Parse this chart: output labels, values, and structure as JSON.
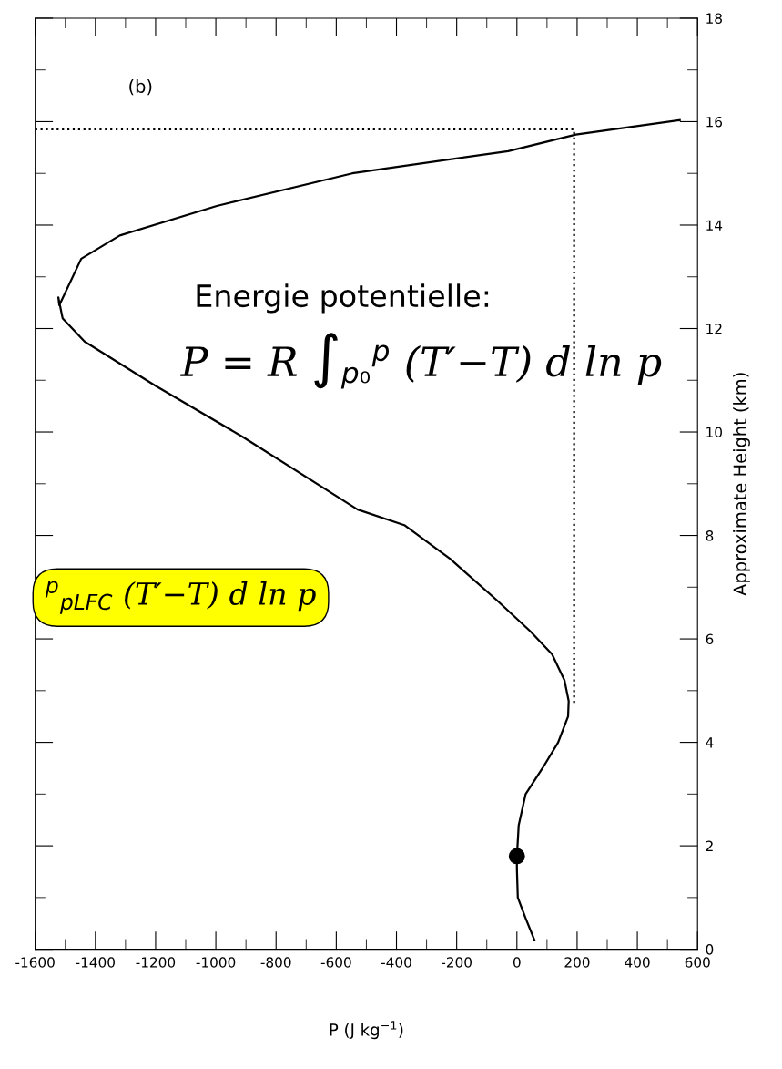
{
  "chart_data": {
    "type": "line",
    "xlabel": "P (J kg$^{−1}$)",
    "ylabel": "Approximate Height (km)",
    "xlim": [
      -1600,
      600
    ],
    "xticks": [
      -1600,
      -1400,
      -1200,
      -1000,
      -800,
      -600,
      -400,
      -200,
      0,
      200,
      400,
      600
    ],
    "ylim": [
      0,
      18
    ],
    "yticks": [
      0,
      2,
      4,
      6,
      8,
      10,
      12,
      14,
      16,
      18
    ],
    "grid": false,
    "legend": false,
    "series": [
      {
        "color": "#000000",
        "line_style": "solid",
        "marker": "none",
        "x": [
          58,
          29,
          3,
          0,
          0,
          6,
          29,
          85,
          137,
          170,
          172,
          158,
          117,
          44,
          -67,
          -222,
          -374,
          -529,
          -909,
          -1202,
          -1436,
          -1509,
          -1523,
          -1520,
          -1447,
          -1319,
          -997,
          -547,
          -29,
          196,
          541
        ],
        "values": [
          0.18,
          0.6,
          1.0,
          1.55,
          1.8,
          2.4,
          3.0,
          3.5,
          4.0,
          4.5,
          4.8,
          5.2,
          5.7,
          6.15,
          6.75,
          7.55,
          8.2,
          8.5,
          9.9,
          10.9,
          11.75,
          12.2,
          12.6,
          12.45,
          13.35,
          13.8,
          14.37,
          15.0,
          15.43,
          15.75,
          16.03
        ]
      },
      {
        "type": "line",
        "color": "#000000",
        "line_style": "dotted",
        "marker": "none",
        "x": [
          -1600,
          190,
          190
        ],
        "values": [
          15.85,
          15.85,
          4.75
        ]
      },
      {
        "type": "scatter",
        "color": "#000000",
        "marker": "circle",
        "x": [
          0
        ],
        "values": [
          1.8
        ]
      }
    ],
    "annotations": [
      "(b)",
      "Energie potentielle:",
      "P = R ∫$_{p₀}$$^{p}$ (T′−T) d ln p",
      "$^{p}$$_{pLFC}$ (T′−T) d ln p"
    ]
  }
}
